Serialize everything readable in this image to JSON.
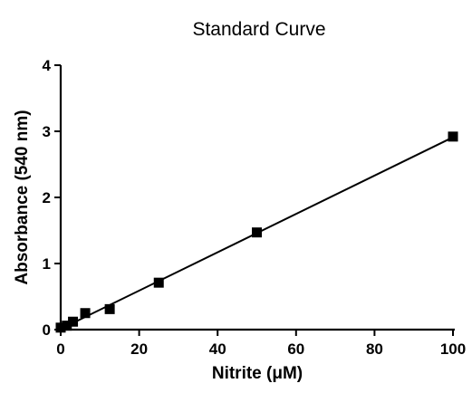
{
  "chart_data": {
    "type": "scatter",
    "title": "Standard Curve",
    "xlabel": "Nitrite (μM)",
    "ylabel": "Absorbance (540 nm)",
    "xlim": [
      0,
      100
    ],
    "ylim": [
      0,
      4
    ],
    "x_ticks": [
      0,
      20,
      40,
      60,
      80,
      100
    ],
    "y_ticks": [
      0,
      1,
      2,
      3,
      4
    ],
    "grid": false,
    "legend": "none",
    "series": [
      {
        "marker": "square",
        "color": "#000000",
        "points": [
          {
            "x": 0,
            "y": 0.03
          },
          {
            "x": 1.56,
            "y": 0.06
          },
          {
            "x": 3.13,
            "y": 0.12
          },
          {
            "x": 6.25,
            "y": 0.25
          },
          {
            "x": 12.5,
            "y": 0.31
          },
          {
            "x": 25,
            "y": 0.71
          },
          {
            "x": 50,
            "y": 1.47
          },
          {
            "x": 100,
            "y": 2.92
          }
        ]
      }
    ],
    "fit_line": {
      "type": "linear",
      "x": [
        0,
        100
      ],
      "y": [
        0.01,
        2.91
      ]
    }
  }
}
